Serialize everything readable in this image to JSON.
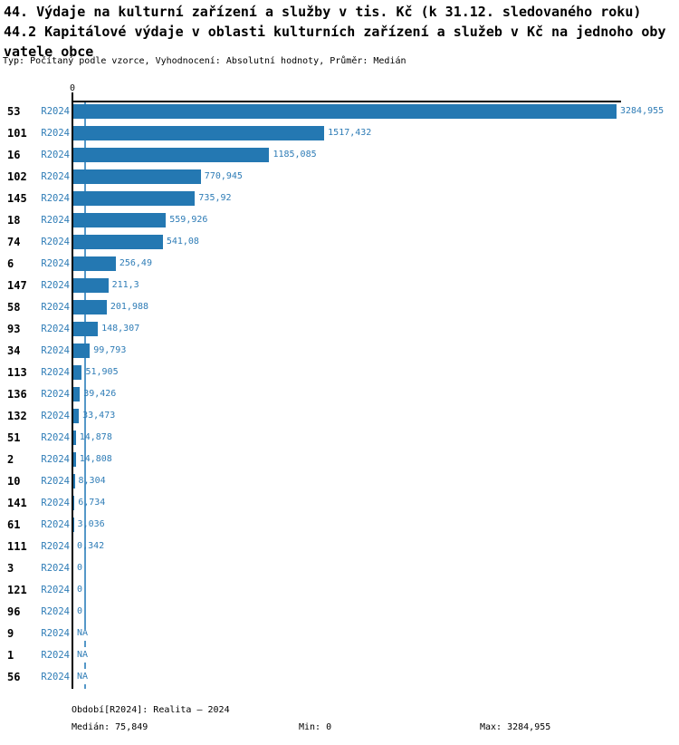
{
  "chart_data": {
    "type": "bar",
    "orientation": "horizontal",
    "title": "44. Výdaje na kulturní zařízení a služby v tis. Kč (k 31.12. sledovaného roku)",
    "subtitle_line1": "44.2 Kapitálové výdaje v oblasti kulturních zařízení a služeb v Kč na jednoho oby",
    "subtitle_line2": "vatele obce",
    "meta_line": "Typ: Počítaný podle vzorce, Vyhodnocení: Absolutní hodnoty, Průměr: Medián",
    "series_label": "R2024",
    "categories": [
      "53",
      "101",
      "16",
      "102",
      "145",
      "18",
      "74",
      "6",
      "147",
      "58",
      "93",
      "34",
      "113",
      "136",
      "132",
      "51",
      "2",
      "10",
      "141",
      "61",
      "111",
      "3",
      "121",
      "96",
      "9",
      "1",
      "56"
    ],
    "values": [
      3284.955,
      1517.432,
      1185.085,
      770.945,
      735.92,
      559.926,
      541.08,
      256.49,
      211.3,
      201.988,
      148.307,
      99.793,
      51.905,
      39.426,
      33.473,
      14.878,
      14.808,
      8.304,
      6.734,
      3.036,
      0.342,
      0,
      0,
      0,
      null,
      null,
      null
    ],
    "value_labels": [
      "3284,955",
      "1517,432",
      "1185,085",
      "770,945",
      "735,92",
      "559,926",
      "541,08",
      "256,49",
      "211,3",
      "201,988",
      "148,307",
      "99,793",
      "51,905",
      "39,426",
      "33,473",
      "14,878",
      "14,808",
      "8,304",
      "6,734",
      "3,036",
      "0,342",
      "0",
      "0",
      "0",
      "NA",
      "NA",
      "NA"
    ],
    "axis": {
      "zero_label": "0",
      "xlim": [
        0,
        3284.955
      ],
      "grid": false
    },
    "median_value": 75.849,
    "legend_position": "none",
    "footer": {
      "period": "Období[R2024]: Realita – 2024",
      "median": "Medián: 75,849",
      "min": "Min: 0",
      "max": "Max: 3284,955"
    },
    "colors": {
      "bar": "#2478b2",
      "text_blue": "#2e7cb6",
      "median_line": "#5598c8",
      "axis": "#000000"
    }
  }
}
